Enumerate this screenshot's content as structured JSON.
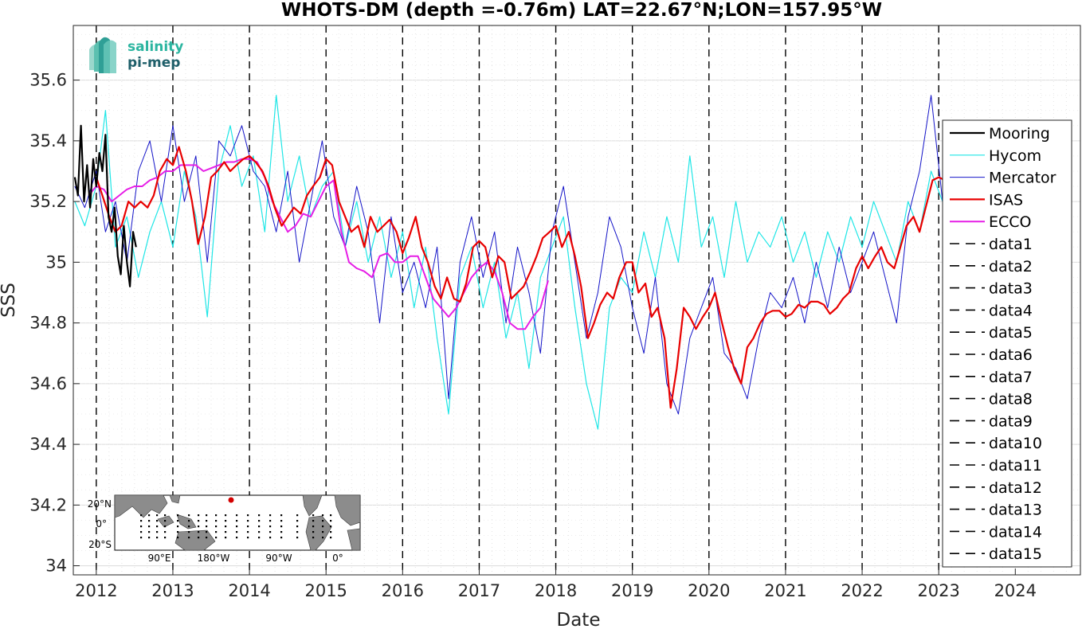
{
  "logo": {
    "line1": "salinity",
    "line2": "pi-mep",
    "color1": "#2bb5a0",
    "color2": "#1f5f6a"
  },
  "inset_map": {
    "lat_labels": [
      "20°N",
      "0°",
      "20°S"
    ],
    "lon_labels": [
      "90°E",
      "180°W",
      "90°W",
      "0°"
    ],
    "ocean_color": "#ffffff",
    "land_color": "#8c8c8c",
    "marker_color": "#d40000"
  },
  "chart_data": {
    "type": "line",
    "title": "WHOTS-DM (depth =-0.76m) LAT=22.67°N;LON=157.95°W",
    "xlabel": "Date",
    "ylabel": "SSS",
    "xlim": [
      2011.7,
      2024.85
    ],
    "ylim": [
      33.97,
      35.78
    ],
    "x_ticks": [
      2012,
      2013,
      2014,
      2015,
      2016,
      2017,
      2018,
      2019,
      2020,
      2021,
      2022,
      2023,
      2024
    ],
    "x_tick_labels": [
      "2012",
      "2013",
      "2014",
      "2015",
      "2016",
      "2017",
      "2018",
      "2019",
      "2020",
      "2021",
      "2022",
      "2023",
      "2024"
    ],
    "y_ticks": [
      34,
      34.2,
      34.4,
      34.6,
      34.8,
      35,
      35.2,
      35.4,
      35.6
    ],
    "y_tick_labels": [
      "34",
      "34.2",
      "34.4",
      "34.6",
      "34.8",
      "35",
      "35.2",
      "35.4",
      "35.6"
    ],
    "grid": true,
    "legend_position": "right",
    "vertical_dashed_lines_x": [
      2012,
      2013,
      2014,
      2015,
      2016,
      2017,
      2018,
      2019,
      2020,
      2021,
      2022,
      2023
    ],
    "series": [
      {
        "name": "Mooring",
        "color": "#000000",
        "width": 2.2,
        "x": [
          2011.72,
          2011.76,
          2011.8,
          2011.84,
          2011.88,
          2011.92,
          2011.96,
          2012.0,
          2012.04,
          2012.08,
          2012.12,
          2012.16,
          2012.2,
          2012.24,
          2012.28,
          2012.32,
          2012.36,
          2012.4,
          2012.44,
          2012.48,
          2012.52
        ],
        "y": [
          35.28,
          35.22,
          35.45,
          35.2,
          35.32,
          35.18,
          35.34,
          35.25,
          35.36,
          35.3,
          35.42,
          35.15,
          35.1,
          35.18,
          35.02,
          34.96,
          35.12,
          35.0,
          34.92,
          35.1,
          35.05
        ]
      },
      {
        "name": "Hycom",
        "color": "#1ee6e6",
        "width": 1.2,
        "x": [
          2011.72,
          2011.85,
          2012.0,
          2012.12,
          2012.25,
          2012.4,
          2012.55,
          2012.7,
          2012.85,
          2013.0,
          2013.15,
          2013.3,
          2013.45,
          2013.6,
          2013.75,
          2013.9,
          2014.05,
          2014.2,
          2014.35,
          2014.5,
          2014.65,
          2014.8,
          2014.95,
          2015.1,
          2015.25,
          2015.4,
          2015.55,
          2015.7,
          2015.85,
          2016.0,
          2016.15,
          2016.3,
          2016.45,
          2016.6,
          2016.75,
          2016.9,
          2017.05,
          2017.2,
          2017.35,
          2017.5,
          2017.65,
          2017.8,
          2017.95,
          2018.1,
          2018.25,
          2018.4,
          2018.55,
          2018.7,
          2018.85,
          2019.0,
          2019.15,
          2019.3,
          2019.45,
          2019.6,
          2019.75,
          2019.9,
          2020.05,
          2020.2,
          2020.35,
          2020.5,
          2020.65,
          2020.8,
          2020.95,
          2021.1,
          2021.25,
          2021.4,
          2021.55,
          2021.7,
          2021.85,
          2022.0,
          2022.15,
          2022.3,
          2022.45,
          2022.6,
          2022.75,
          2022.9,
          2023.05
        ],
        "y": [
          35.2,
          35.12,
          35.25,
          35.5,
          35.05,
          35.15,
          34.95,
          35.1,
          35.2,
          35.05,
          35.3,
          35.15,
          34.82,
          35.3,
          35.45,
          35.25,
          35.35,
          35.1,
          35.55,
          35.2,
          35.35,
          35.15,
          35.25,
          35.3,
          35.05,
          35.2,
          35.0,
          35.15,
          34.95,
          35.1,
          34.85,
          35.05,
          34.75,
          34.5,
          34.95,
          35.05,
          34.85,
          35.0,
          34.75,
          34.9,
          34.65,
          34.95,
          35.05,
          35.15,
          34.85,
          34.6,
          34.45,
          34.85,
          34.95,
          34.9,
          35.1,
          34.95,
          35.15,
          35.0,
          35.35,
          35.05,
          35.15,
          34.95,
          35.2,
          35.0,
          35.1,
          35.05,
          35.15,
          35.0,
          35.1,
          34.95,
          35.1,
          35.0,
          35.15,
          35.05,
          35.2,
          35.1,
          35.0,
          35.2,
          35.1,
          35.3,
          35.2
        ]
      },
      {
        "name": "Mercator",
        "color": "#1414c8",
        "width": 1.0,
        "x": [
          2011.72,
          2011.85,
          2012.0,
          2012.12,
          2012.25,
          2012.4,
          2012.55,
          2012.7,
          2012.85,
          2013.0,
          2013.15,
          2013.3,
          2013.45,
          2013.6,
          2013.75,
          2013.9,
          2014.05,
          2014.2,
          2014.35,
          2014.5,
          2014.65,
          2014.8,
          2014.95,
          2015.1,
          2015.25,
          2015.4,
          2015.55,
          2015.7,
          2015.85,
          2016.0,
          2016.15,
          2016.3,
          2016.45,
          2016.6,
          2016.75,
          2016.9,
          2017.05,
          2017.2,
          2017.35,
          2017.5,
          2017.65,
          2017.8,
          2017.95,
          2018.1,
          2018.25,
          2018.4,
          2018.55,
          2018.7,
          2018.85,
          2019.0,
          2019.15,
          2019.3,
          2019.45,
          2019.6,
          2019.75,
          2019.9,
          2020.05,
          2020.2,
          2020.35,
          2020.5,
          2020.65,
          2020.8,
          2020.95,
          2021.1,
          2021.25,
          2021.4,
          2021.55,
          2021.7,
          2021.85,
          2022.0,
          2022.15,
          2022.3,
          2022.45,
          2022.6,
          2022.75,
          2022.9,
          2023.05
        ],
        "y": [
          35.25,
          35.18,
          35.3,
          35.1,
          35.2,
          35.0,
          35.3,
          35.4,
          35.2,
          35.45,
          35.2,
          35.35,
          35.0,
          35.4,
          35.35,
          35.45,
          35.3,
          35.25,
          35.1,
          35.3,
          35.0,
          35.2,
          35.4,
          35.15,
          35.05,
          35.25,
          35.1,
          34.8,
          35.15,
          34.9,
          35.0,
          34.85,
          35.05,
          34.55,
          35.0,
          35.15,
          34.95,
          35.1,
          34.8,
          35.05,
          34.9,
          34.7,
          35.1,
          35.25,
          35.0,
          34.75,
          34.9,
          35.15,
          35.05,
          34.85,
          34.7,
          34.95,
          34.6,
          34.5,
          34.75,
          34.85,
          34.95,
          34.7,
          34.65,
          34.55,
          34.75,
          34.9,
          34.85,
          34.95,
          34.8,
          35.0,
          34.85,
          35.05,
          34.9,
          35.0,
          35.1,
          34.95,
          34.8,
          35.15,
          35.3,
          35.55,
          35.2
        ]
      },
      {
        "name": "ISAS",
        "color": "#e80000",
        "width": 2.2,
        "x": [
          2012.0,
          2012.08,
          2012.17,
          2012.25,
          2012.33,
          2012.42,
          2012.5,
          2012.58,
          2012.67,
          2012.75,
          2012.83,
          2012.92,
          2013.0,
          2013.08,
          2013.17,
          2013.25,
          2013.33,
          2013.42,
          2013.5,
          2013.58,
          2013.67,
          2013.75,
          2013.83,
          2013.92,
          2014.0,
          2014.08,
          2014.17,
          2014.25,
          2014.33,
          2014.42,
          2014.5,
          2014.58,
          2014.67,
          2014.75,
          2014.83,
          2014.92,
          2015.0,
          2015.08,
          2015.17,
          2015.25,
          2015.33,
          2015.42,
          2015.5,
          2015.58,
          2015.67,
          2015.75,
          2015.83,
          2015.92,
          2016.0,
          2016.08,
          2016.17,
          2016.25,
          2016.33,
          2016.42,
          2016.5,
          2016.58,
          2016.67,
          2016.75,
          2016.83,
          2016.92,
          2017.0,
          2017.08,
          2017.17,
          2017.25,
          2017.33,
          2017.42,
          2017.5,
          2017.58,
          2017.67,
          2017.75,
          2017.83,
          2017.92,
          2018.0,
          2018.08,
          2018.17,
          2018.25,
          2018.33,
          2018.42,
          2018.5,
          2018.58,
          2018.67,
          2018.75,
          2018.83,
          2018.92,
          2019.0,
          2019.08,
          2019.17,
          2019.25,
          2019.33,
          2019.42,
          2019.5,
          2019.58,
          2019.67,
          2019.75,
          2019.83,
          2019.92,
          2020.0,
          2020.08,
          2020.17,
          2020.25,
          2020.33,
          2020.42,
          2020.5,
          2020.58,
          2020.67,
          2020.75,
          2020.83,
          2020.92,
          2021.0,
          2021.08,
          2021.17,
          2021.25,
          2021.33,
          2021.42,
          2021.5,
          2021.58,
          2021.67,
          2021.75,
          2021.83,
          2021.92,
          2022.0,
          2022.08,
          2022.17,
          2022.25,
          2022.33,
          2022.42,
          2022.5,
          2022.58,
          2022.67,
          2022.75,
          2022.83,
          2022.92,
          2023.0,
          2023.08
        ],
        "y": [
          35.28,
          35.22,
          35.15,
          35.1,
          35.12,
          35.2,
          35.18,
          35.2,
          35.18,
          35.22,
          35.3,
          35.34,
          35.32,
          35.38,
          35.3,
          35.2,
          35.06,
          35.15,
          35.28,
          35.3,
          35.33,
          35.3,
          35.32,
          35.34,
          35.35,
          35.33,
          35.3,
          35.25,
          35.18,
          35.12,
          35.15,
          35.18,
          35.16,
          35.22,
          35.25,
          35.28,
          35.34,
          35.32,
          35.2,
          35.15,
          35.1,
          35.12,
          35.05,
          35.15,
          35.1,
          35.12,
          35.14,
          35.1,
          35.03,
          35.08,
          35.15,
          35.05,
          35.0,
          34.92,
          34.88,
          34.95,
          34.88,
          34.87,
          34.93,
          35.05,
          35.07,
          35.05,
          34.95,
          35.02,
          35.0,
          34.88,
          34.9,
          34.92,
          34.97,
          35.02,
          35.08,
          35.1,
          35.12,
          35.05,
          35.1,
          35.02,
          34.92,
          34.75,
          34.8,
          34.86,
          34.9,
          34.88,
          34.95,
          35.0,
          35.0,
          34.9,
          34.93,
          34.82,
          34.85,
          34.75,
          34.52,
          34.65,
          34.85,
          34.82,
          34.78,
          34.82,
          34.85,
          34.9,
          34.8,
          34.72,
          34.65,
          34.6,
          34.72,
          34.75,
          34.8,
          34.83,
          34.84,
          34.84,
          34.82,
          34.83,
          34.86,
          34.85,
          34.87,
          34.87,
          34.86,
          34.83,
          34.85,
          34.88,
          34.9,
          34.98,
          35.02,
          34.98,
          35.02,
          35.05,
          35.0,
          34.98,
          35.05,
          35.12,
          35.15,
          35.1,
          35.18,
          35.27,
          35.28,
          35.27
        ]
      },
      {
        "name": "ECCO",
        "color": "#e61ee6",
        "width": 2.0,
        "x": [
          2011.9,
          2012.0,
          2012.1,
          2012.2,
          2012.3,
          2012.4,
          2012.5,
          2012.6,
          2012.7,
          2012.8,
          2012.9,
          2013.0,
          2013.1,
          2013.2,
          2013.3,
          2013.4,
          2013.5,
          2013.6,
          2013.7,
          2013.8,
          2013.9,
          2014.0,
          2014.1,
          2014.2,
          2014.3,
          2014.4,
          2014.5,
          2014.6,
          2014.7,
          2014.8,
          2014.9,
          2015.0,
          2015.1,
          2015.2,
          2015.3,
          2015.4,
          2015.5,
          2015.6,
          2015.7,
          2015.8,
          2015.9,
          2016.0,
          2016.1,
          2016.2,
          2016.3,
          2016.4,
          2016.5,
          2016.6,
          2016.7,
          2016.8,
          2016.9,
          2017.0,
          2017.1,
          2017.2,
          2017.3,
          2017.4,
          2017.5,
          2017.6,
          2017.7,
          2017.8,
          2017.9
        ],
        "y": [
          35.22,
          35.25,
          35.24,
          35.2,
          35.22,
          35.24,
          35.25,
          35.25,
          35.27,
          35.28,
          35.3,
          35.3,
          35.32,
          35.32,
          35.32,
          35.3,
          35.31,
          35.32,
          35.33,
          35.33,
          35.34,
          35.34,
          35.33,
          35.28,
          35.2,
          35.15,
          35.1,
          35.12,
          35.16,
          35.15,
          35.2,
          35.25,
          35.27,
          35.1,
          35.0,
          34.98,
          34.97,
          34.95,
          35.02,
          35.03,
          35.0,
          35.0,
          35.02,
          35.02,
          34.95,
          34.88,
          34.85,
          34.82,
          34.85,
          34.9,
          34.95,
          34.98,
          35.0,
          34.97,
          34.9,
          34.8,
          34.78,
          34.78,
          34.82,
          34.85,
          34.94
        ]
      },
      {
        "name": "data1",
        "color": "#000000",
        "dashed": true
      },
      {
        "name": "data2",
        "color": "#000000",
        "dashed": true
      },
      {
        "name": "data3",
        "color": "#000000",
        "dashed": true
      },
      {
        "name": "data4",
        "color": "#000000",
        "dashed": true
      },
      {
        "name": "data5",
        "color": "#000000",
        "dashed": true
      },
      {
        "name": "data6",
        "color": "#000000",
        "dashed": true
      },
      {
        "name": "data7",
        "color": "#000000",
        "dashed": true
      },
      {
        "name": "data8",
        "color": "#000000",
        "dashed": true
      },
      {
        "name": "data9",
        "color": "#000000",
        "dashed": true
      },
      {
        "name": "data10",
        "color": "#000000",
        "dashed": true
      },
      {
        "name": "data11",
        "color": "#000000",
        "dashed": true
      },
      {
        "name": "data12",
        "color": "#000000",
        "dashed": true
      },
      {
        "name": "data13",
        "color": "#000000",
        "dashed": true
      },
      {
        "name": "data14",
        "color": "#000000",
        "dashed": true
      },
      {
        "name": "data15",
        "color": "#000000",
        "dashed": true
      }
    ]
  }
}
